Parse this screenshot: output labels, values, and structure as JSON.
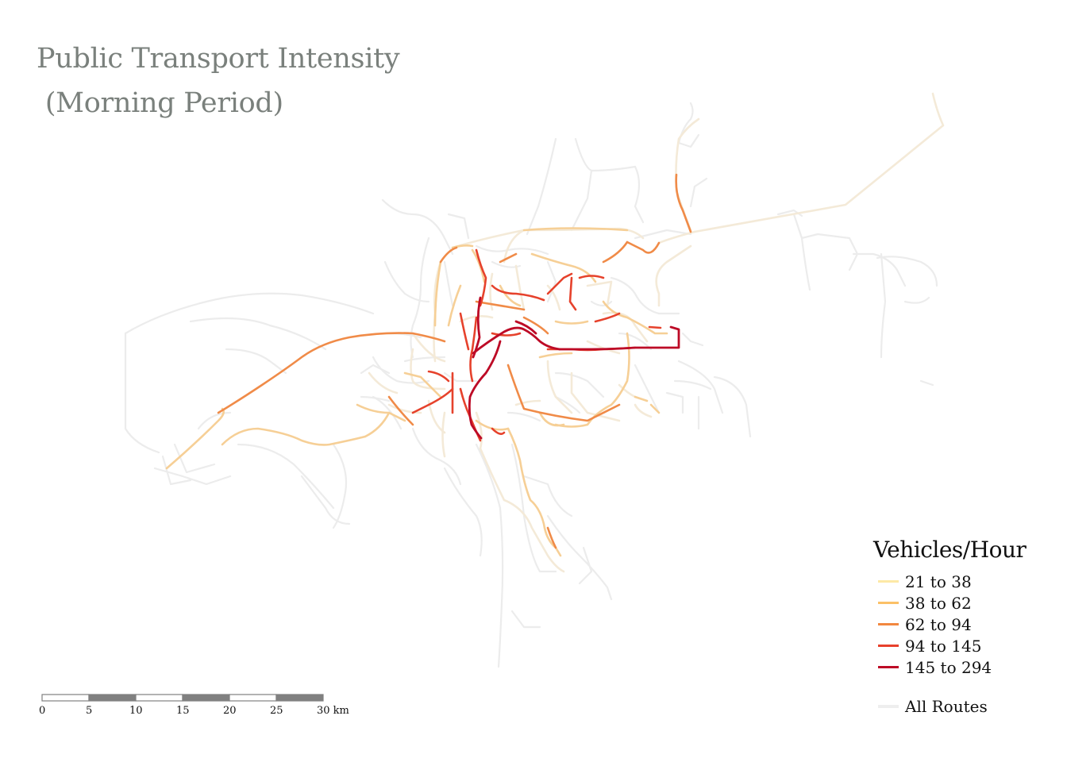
{
  "title": {
    "line1": "Public Transport Intensity",
    "line2": " (Morning Period)"
  },
  "legend": {
    "heading": "Vehicles/Hour",
    "classes": [
      {
        "label": "21 to 38",
        "color": "#fde9a6"
      },
      {
        "label": "38 to 62",
        "color": "#fbc067"
      },
      {
        "label": "62 to 94",
        "color": "#f2873f"
      },
      {
        "label": "94 to 145",
        "color": "#e8402b"
      },
      {
        "label": "145 to 294",
        "color": "#bd0a26"
      }
    ],
    "all_routes": {
      "label": "All Routes",
      "color": "#eeeeee"
    }
  },
  "scalebar": {
    "ticks": [
      "0",
      "5",
      "10",
      "15",
      "20",
      "25",
      "30"
    ],
    "unit": "km",
    "colors": [
      "#ffffff",
      "#808080"
    ]
  }
}
